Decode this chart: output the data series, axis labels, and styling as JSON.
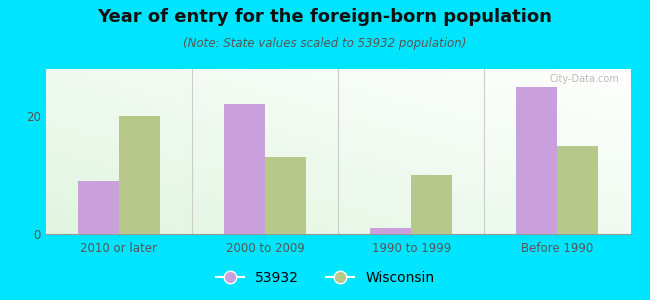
{
  "title": "Year of entry for the foreign-born population",
  "subtitle": "(Note: State values scaled to 53932 population)",
  "categories": [
    "2010 or later",
    "2000 to 2009",
    "1990 to 1999",
    "Before 1990"
  ],
  "values_53932": [
    9,
    22,
    1,
    25
  ],
  "values_wisconsin": [
    20,
    13,
    10,
    15
  ],
  "color_53932": "#c9a0dc",
  "color_wisconsin": "#b8c88a",
  "background_outer": "#00e5ff",
  "ylim": [
    0,
    28
  ],
  "yticks": [
    0,
    20
  ],
  "legend_label_53932": "53932",
  "legend_label_wisconsin": "Wisconsin",
  "bar_width": 0.28,
  "title_fontsize": 13,
  "subtitle_fontsize": 8.5,
  "tick_fontsize": 8.5,
  "legend_fontsize": 10
}
